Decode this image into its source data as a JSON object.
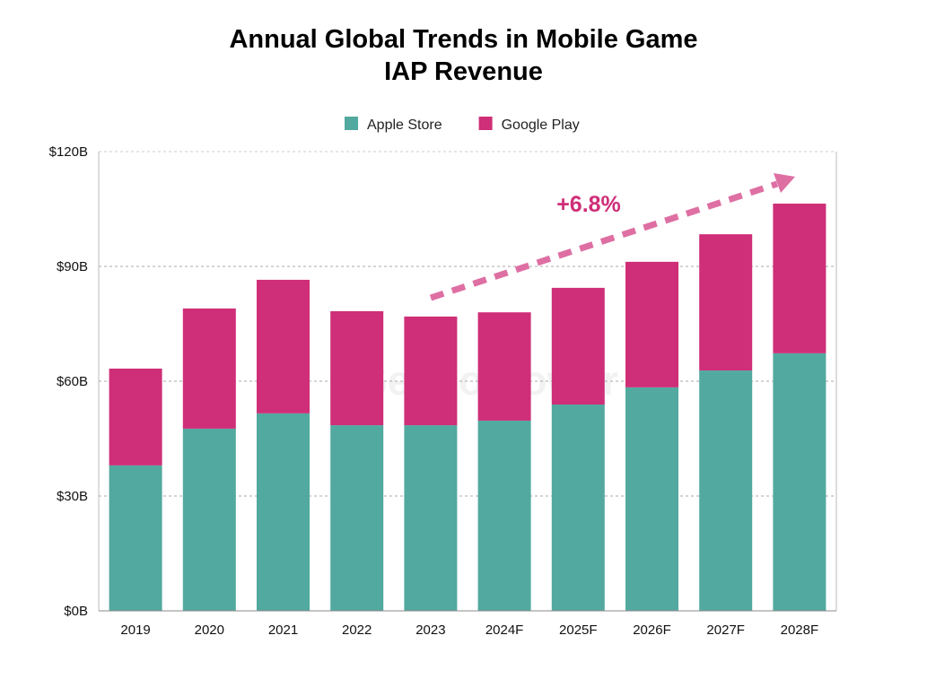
{
  "chart_data": {
    "type": "bar",
    "stacked": true,
    "title": "Annual Global Trends in Mobile Game\nIAP Revenue",
    "xlabel": "",
    "ylabel": "",
    "categories": [
      "2019",
      "2020",
      "2021",
      "2022",
      "2023",
      "2024F",
      "2025F",
      "2026F",
      "2027F",
      "2028F"
    ],
    "series": [
      {
        "name": "Apple Store",
        "color": "#52a99f",
        "values": [
          38.0,
          47.6,
          51.6,
          48.5,
          48.5,
          49.7,
          53.9,
          58.4,
          62.8,
          67.3
        ]
      },
      {
        "name": "Google Play",
        "color": "#cf2e78",
        "values": [
          25.3,
          31.4,
          34.9,
          29.8,
          28.4,
          28.3,
          30.5,
          32.8,
          35.6,
          39.1
        ]
      }
    ],
    "ylim": [
      0,
      120
    ],
    "yticks": [
      0,
      30,
      60,
      90,
      120
    ],
    "ytick_labels": [
      "$0B",
      "$30B",
      "$60B",
      "$90B",
      "$120B"
    ],
    "grid": true,
    "legend_position": "top",
    "annotation": {
      "text": "+6.8%",
      "color": "#cf2e78",
      "arrow_from": "2023",
      "arrow_to": "2028F"
    },
    "watermark": "SensorTower"
  }
}
